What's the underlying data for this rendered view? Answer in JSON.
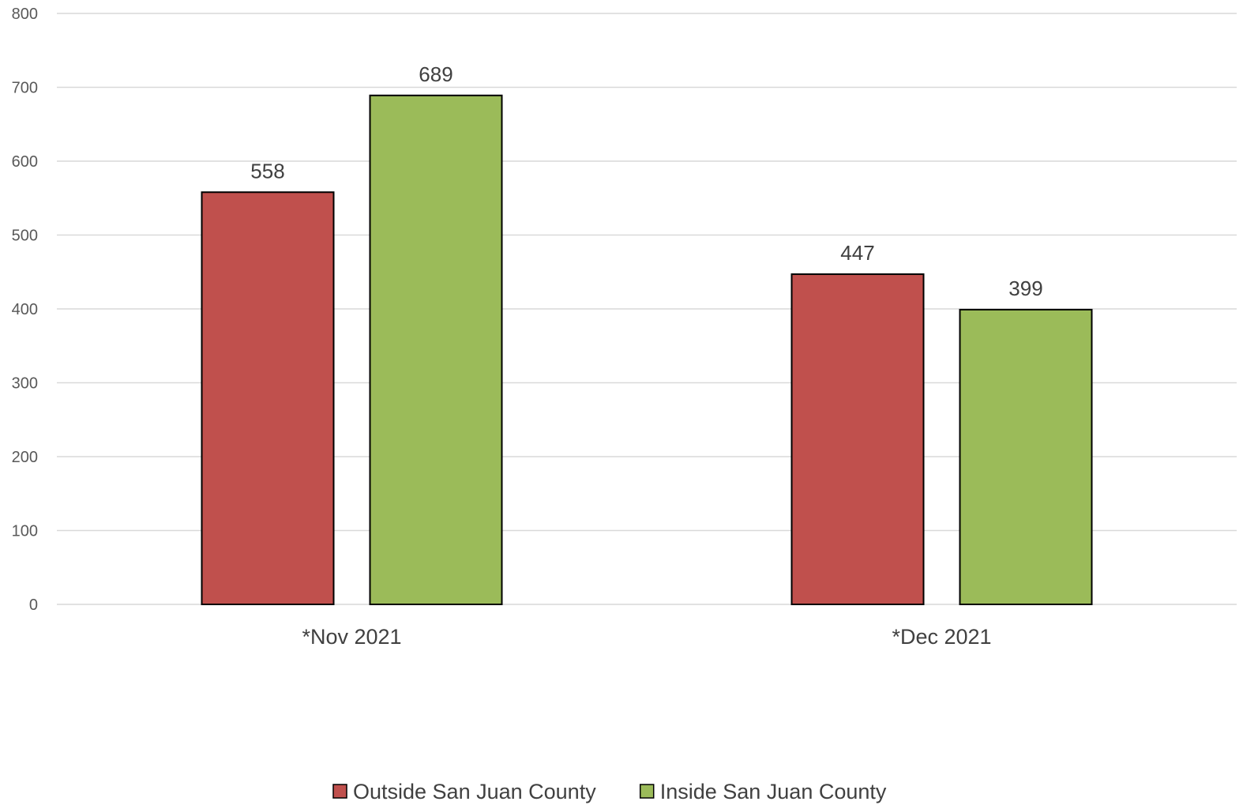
{
  "chart_data": {
    "type": "bar",
    "title": "",
    "xlabel": "",
    "ylabel": "",
    "categories": [
      "*Nov 2021",
      "*Dec 2021"
    ],
    "series": [
      {
        "name": "Outside San Juan County",
        "values": [
          558,
          447
        ],
        "color": "#c0504d"
      },
      {
        "name": "Inside San Juan County",
        "values": [
          689,
          399
        ],
        "color": "#9bbb59"
      }
    ],
    "ylim": [
      0,
      800
    ],
    "yticks": [
      0,
      100,
      200,
      300,
      400,
      500,
      600,
      700,
      800
    ],
    "grid": true,
    "legend_position": "bottom",
    "data_labels": true,
    "colors": {
      "gridline": "#d9d9d9",
      "bar_outline": "#000000"
    }
  }
}
